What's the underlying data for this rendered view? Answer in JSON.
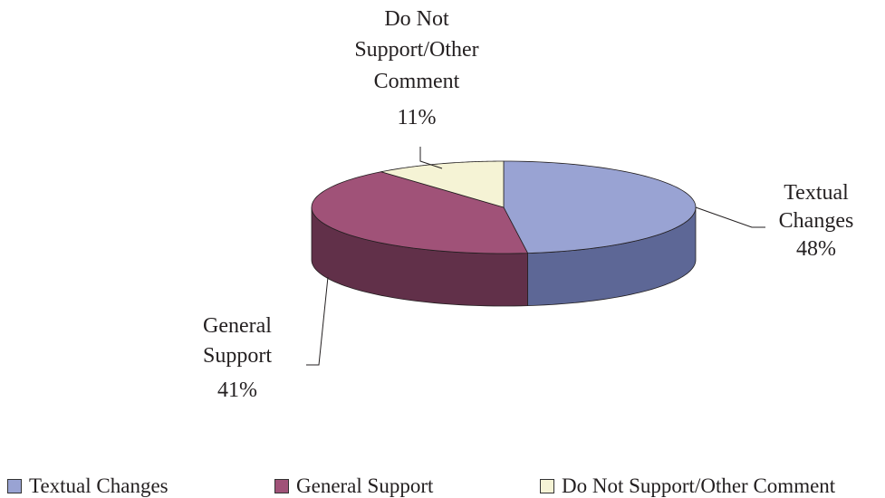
{
  "chart_data": {
    "type": "pie",
    "title": "",
    "style": "3d-pie",
    "legend_position": "bottom",
    "slices": [
      {
        "label": "Textual Changes",
        "label_lines": [
          "Textual",
          "Changes"
        ],
        "value": 48,
        "value_label": "48%",
        "color": "#99a3d3",
        "side_color": "#5d6796"
      },
      {
        "label": "General Support",
        "label_lines": [
          "General",
          "Support"
        ],
        "value": 41,
        "value_label": "41%",
        "color": "#a05278",
        "side_color": "#613049"
      },
      {
        "label": "Do Not Support/Other Comment",
        "label_lines": [
          "Do Not",
          "Support/Other",
          "Comment"
        ],
        "value": 11,
        "value_label": "11%",
        "color": "#f5f3d5",
        "side_color": "#cfcca6"
      }
    ]
  }
}
